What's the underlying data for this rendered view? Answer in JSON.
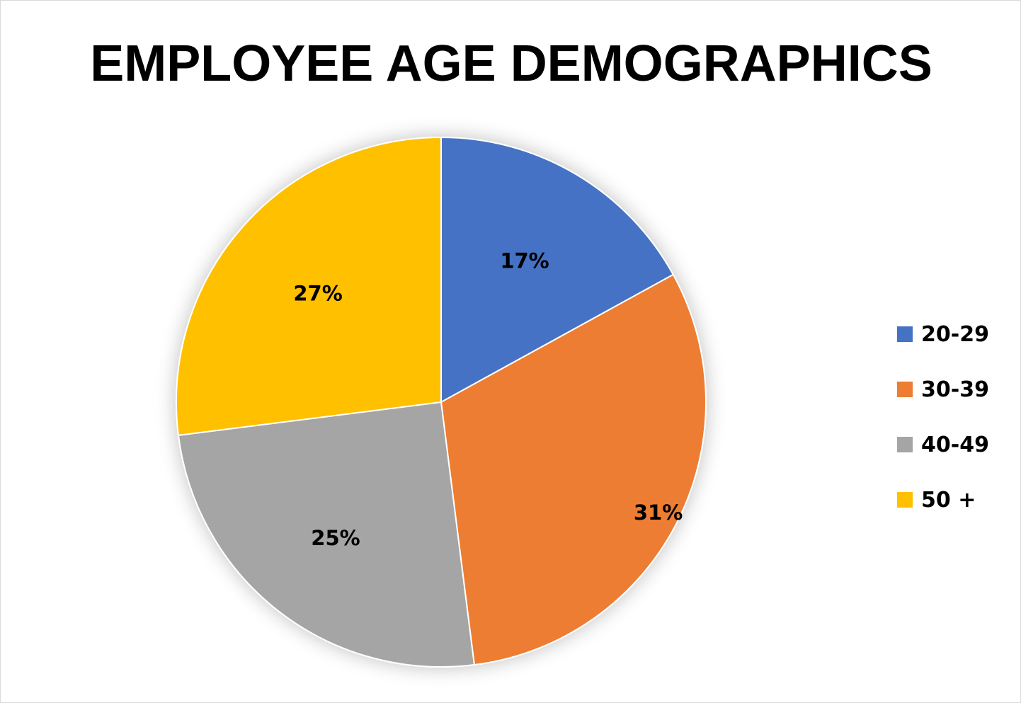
{
  "chart_data": {
    "type": "pie",
    "title": "EMPLOYEE AGE DEMOGRAPHICS",
    "categories": [
      "20-29",
      "30-39",
      "40-49",
      "50 +"
    ],
    "values": [
      17,
      31,
      25,
      27
    ],
    "labels": [
      "17%",
      "31%",
      "25%",
      "27%"
    ],
    "colors": [
      "#4472c4",
      "#ed7d31",
      "#a5a5a5",
      "#ffc000"
    ],
    "legend_position": "right",
    "start_angle": "top, clockwise"
  },
  "legend": [
    {
      "label": "20-29",
      "color": "#4472c4"
    },
    {
      "label": "30-39",
      "color": "#ed7d31"
    },
    {
      "label": "40-49",
      "color": "#a5a5a5"
    },
    {
      "label": "50 +",
      "color": "#ffc000"
    }
  ]
}
